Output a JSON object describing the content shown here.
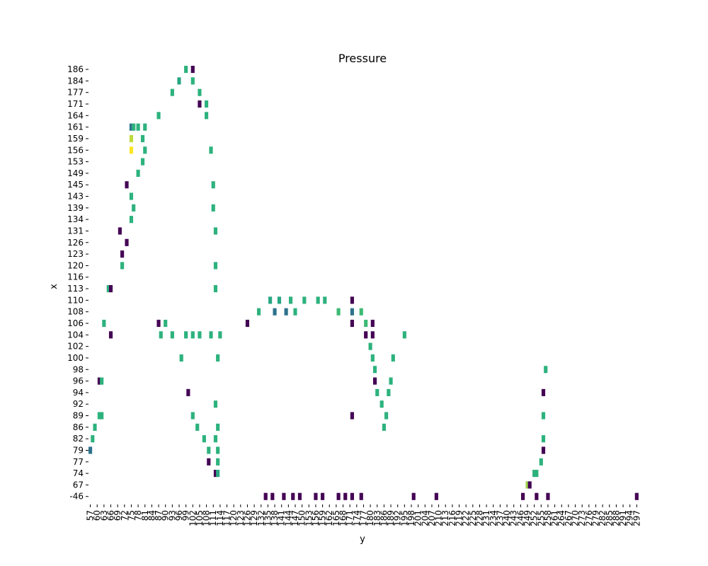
{
  "chart_data": {
    "type": "heatmap",
    "title": "Pressure",
    "xlabel": "y",
    "ylabel": "x",
    "colormap": "viridis",
    "grid": false,
    "colors": {
      "low": "#440154",
      "midlow": "#3b528b",
      "mid": "#21918c",
      "midhigh": "#2db27d",
      "high": "#5ec962",
      "max": "#fde725"
    },
    "x_tick_labels": [
      "57",
      "60",
      "63",
      "66",
      "69",
      "72",
      "75",
      "78",
      "81",
      "84",
      "87",
      "90",
      "93",
      "96",
      "99",
      "102",
      "105",
      "108",
      "111",
      "114",
      "117",
      "120",
      "123",
      "126",
      "129",
      "132",
      "135",
      "138",
      "141",
      "144",
      "147",
      "150",
      "153",
      "156",
      "159",
      "162",
      "165",
      "168",
      "171",
      "174",
      "177",
      "180",
      "183",
      "186",
      "189",
      "192",
      "195",
      "198",
      "201",
      "204",
      "207",
      "210",
      "213",
      "216",
      "219",
      "222",
      "225",
      "228",
      "231",
      "234",
      "237",
      "240",
      "243",
      "246",
      "249",
      "252",
      "255",
      "258",
      "261",
      "264",
      "267",
      "270",
      "273",
      "276",
      "279",
      "282",
      "285",
      "288",
      "291",
      "294",
      "297"
    ],
    "y_tick_labels": [
      "186",
      "184",
      "177",
      "171",
      "164",
      "161",
      "159",
      "156",
      "153",
      "149",
      "145",
      "143",
      "139",
      "134",
      "131",
      "126",
      "123",
      "120",
      "116",
      "113",
      "110",
      "108",
      "106",
      "104",
      "102",
      "100",
      "98",
      "96",
      "94",
      "92",
      "89",
      "86",
      "82",
      "79",
      "77",
      "74",
      "67",
      "-46"
    ],
    "cells": [
      {
        "y": 186,
        "x": 99,
        "v": 0.6
      },
      {
        "y": 186,
        "x": 102,
        "v": 0.0
      },
      {
        "y": 184,
        "x": 96,
        "v": 0.55
      },
      {
        "y": 184,
        "x": 102,
        "v": 0.6
      },
      {
        "y": 177,
        "x": 93,
        "v": 0.6
      },
      {
        "y": 177,
        "x": 105,
        "v": 0.6
      },
      {
        "y": 171,
        "x": 105,
        "v": 0.0
      },
      {
        "y": 171,
        "x": 108,
        "v": 0.6
      },
      {
        "y": 164,
        "x": 87,
        "v": 0.6
      },
      {
        "y": 164,
        "x": 108,
        "v": 0.6
      },
      {
        "y": 161,
        "x": 75,
        "v": 0.35
      },
      {
        "y": 161,
        "x": 76,
        "v": 0.6
      },
      {
        "y": 161,
        "x": 78,
        "v": 0.6
      },
      {
        "y": 161,
        "x": 81,
        "v": 0.6
      },
      {
        "y": 159,
        "x": 75,
        "v": 0.9
      },
      {
        "y": 159,
        "x": 80,
        "v": 0.6
      },
      {
        "y": 156,
        "x": 75,
        "v": 1.0
      },
      {
        "y": 156,
        "x": 81,
        "v": 0.6
      },
      {
        "y": 156,
        "x": 110,
        "v": 0.6
      },
      {
        "y": 153,
        "x": 80,
        "v": 0.6
      },
      {
        "y": 149,
        "x": 78,
        "v": 0.6
      },
      {
        "y": 145,
        "x": 73,
        "v": 0.0
      },
      {
        "y": 145,
        "x": 111,
        "v": 0.6
      },
      {
        "y": 143,
        "x": 75,
        "v": 0.6
      },
      {
        "y": 139,
        "x": 76,
        "v": 0.6
      },
      {
        "y": 139,
        "x": 111,
        "v": 0.6
      },
      {
        "y": 134,
        "x": 75,
        "v": 0.6
      },
      {
        "y": 131,
        "x": 70,
        "v": 0.0
      },
      {
        "y": 131,
        "x": 112,
        "v": 0.6
      },
      {
        "y": 126,
        "x": 73,
        "v": 0.0
      },
      {
        "y": 123,
        "x": 71,
        "v": 0.0
      },
      {
        "y": 120,
        "x": 71,
        "v": 0.6
      },
      {
        "y": 120,
        "x": 112,
        "v": 0.6
      },
      {
        "y": 113,
        "x": 65,
        "v": 0.6
      },
      {
        "y": 113,
        "x": 66,
        "v": 0.0
      },
      {
        "y": 113,
        "x": 112,
        "v": 0.6
      },
      {
        "y": 110,
        "x": 136,
        "v": 0.55
      },
      {
        "y": 110,
        "x": 140,
        "v": 0.55
      },
      {
        "y": 110,
        "x": 145,
        "v": 0.6
      },
      {
        "y": 110,
        "x": 151,
        "v": 0.6
      },
      {
        "y": 110,
        "x": 157,
        "v": 0.6
      },
      {
        "y": 110,
        "x": 160,
        "v": 0.6
      },
      {
        "y": 110,
        "x": 172,
        "v": 0.0
      },
      {
        "y": 108,
        "x": 131,
        "v": 0.6
      },
      {
        "y": 108,
        "x": 138,
        "v": 0.35
      },
      {
        "y": 108,
        "x": 143,
        "v": 0.35
      },
      {
        "y": 108,
        "x": 147,
        "v": 0.6
      },
      {
        "y": 108,
        "x": 166,
        "v": 0.65
      },
      {
        "y": 108,
        "x": 172,
        "v": 0.35
      },
      {
        "y": 108,
        "x": 176,
        "v": 0.65
      },
      {
        "y": 106,
        "x": 63,
        "v": 0.6
      },
      {
        "y": 106,
        "x": 87,
        "v": 0.0
      },
      {
        "y": 106,
        "x": 90,
        "v": 0.6
      },
      {
        "y": 106,
        "x": 126,
        "v": 0.0
      },
      {
        "y": 106,
        "x": 172,
        "v": 0.0
      },
      {
        "y": 106,
        "x": 178,
        "v": 0.65
      },
      {
        "y": 106,
        "x": 181,
        "v": 0.0
      },
      {
        "y": 104,
        "x": 66,
        "v": 0.0
      },
      {
        "y": 104,
        "x": 88,
        "v": 0.6
      },
      {
        "y": 104,
        "x": 93,
        "v": 0.6
      },
      {
        "y": 104,
        "x": 99,
        "v": 0.6
      },
      {
        "y": 104,
        "x": 102,
        "v": 0.6
      },
      {
        "y": 104,
        "x": 105,
        "v": 0.6
      },
      {
        "y": 104,
        "x": 110,
        "v": 0.6
      },
      {
        "y": 104,
        "x": 114,
        "v": 0.6
      },
      {
        "y": 104,
        "x": 178,
        "v": 0.0
      },
      {
        "y": 104,
        "x": 181,
        "v": 0.0
      },
      {
        "y": 104,
        "x": 195,
        "v": 0.6
      },
      {
        "y": 102,
        "x": 180,
        "v": 0.6
      },
      {
        "y": 100,
        "x": 97,
        "v": 0.6
      },
      {
        "y": 100,
        "x": 113,
        "v": 0.6
      },
      {
        "y": 100,
        "x": 181,
        "v": 0.6
      },
      {
        "y": 100,
        "x": 190,
        "v": 0.6
      },
      {
        "y": 98,
        "x": 182,
        "v": 0.6
      },
      {
        "y": 98,
        "x": 257,
        "v": 0.6
      },
      {
        "y": 96,
        "x": 61,
        "v": 0.0
      },
      {
        "y": 96,
        "x": 62,
        "v": 0.6
      },
      {
        "y": 96,
        "x": 182,
        "v": 0.0
      },
      {
        "y": 96,
        "x": 189,
        "v": 0.6
      },
      {
        "y": 94,
        "x": 100,
        "v": 0.0
      },
      {
        "y": 94,
        "x": 183,
        "v": 0.6
      },
      {
        "y": 94,
        "x": 188,
        "v": 0.6
      },
      {
        "y": 94,
        "x": 256,
        "v": 0.0
      },
      {
        "y": 92,
        "x": 112,
        "v": 0.6
      },
      {
        "y": 92,
        "x": 185,
        "v": 0.6
      },
      {
        "y": 89,
        "x": 62,
        "v": 0.6
      },
      {
        "y": 89,
        "x": 61,
        "v": 0.6
      },
      {
        "y": 89,
        "x": 102,
        "v": 0.6
      },
      {
        "y": 89,
        "x": 172,
        "v": 0.0
      },
      {
        "y": 89,
        "x": 187,
        "v": 0.6
      },
      {
        "y": 89,
        "x": 256,
        "v": 0.6
      },
      {
        "y": 86,
        "x": 59,
        "v": 0.6
      },
      {
        "y": 86,
        "x": 104,
        "v": 0.6
      },
      {
        "y": 86,
        "x": 113,
        "v": 0.6
      },
      {
        "y": 86,
        "x": 186,
        "v": 0.6
      },
      {
        "y": 82,
        "x": 58,
        "v": 0.6
      },
      {
        "y": 82,
        "x": 107,
        "v": 0.6
      },
      {
        "y": 82,
        "x": 112,
        "v": 0.6
      },
      {
        "y": 82,
        "x": 256,
        "v": 0.6
      },
      {
        "y": 79,
        "x": 57,
        "v": 0.35
      },
      {
        "y": 79,
        "x": 109,
        "v": 0.6
      },
      {
        "y": 79,
        "x": 113,
        "v": 0.6
      },
      {
        "y": 79,
        "x": 256,
        "v": 0.0
      },
      {
        "y": 77,
        "x": 109,
        "v": 0.0
      },
      {
        "y": 77,
        "x": 113,
        "v": 0.6
      },
      {
        "y": 77,
        "x": 255,
        "v": 0.6
      },
      {
        "y": 74,
        "x": 112,
        "v": 0.0
      },
      {
        "y": 74,
        "x": 113,
        "v": 0.55
      },
      {
        "y": 74,
        "x": 253,
        "v": 0.6
      },
      {
        "y": 74,
        "x": 252,
        "v": 0.6
      },
      {
        "y": 67,
        "x": 249,
        "v": 0.85
      },
      {
        "y": 67,
        "x": 250,
        "v": 0.0
      },
      {
        "y": -46,
        "x": 134,
        "v": 0.0
      },
      {
        "y": -46,
        "x": 137,
        "v": 0.0
      },
      {
        "y": -46,
        "x": 142,
        "v": 0.0
      },
      {
        "y": -46,
        "x": 146,
        "v": 0.0
      },
      {
        "y": -46,
        "x": 149,
        "v": 0.0
      },
      {
        "y": -46,
        "x": 156,
        "v": 0.0
      },
      {
        "y": -46,
        "x": 159,
        "v": 0.0
      },
      {
        "y": -46,
        "x": 166,
        "v": 0.0
      },
      {
        "y": -46,
        "x": 169,
        "v": 0.0
      },
      {
        "y": -46,
        "x": 172,
        "v": 0.0
      },
      {
        "y": -46,
        "x": 176,
        "v": 0.0
      },
      {
        "y": -46,
        "x": 199,
        "v": 0.0
      },
      {
        "y": -46,
        "x": 209,
        "v": 0.0
      },
      {
        "y": -46,
        "x": 247,
        "v": 0.0
      },
      {
        "y": -46,
        "x": 253,
        "v": 0.0
      },
      {
        "y": -46,
        "x": 258,
        "v": 0.0
      },
      {
        "y": -46,
        "x": 297,
        "v": 0.0
      }
    ]
  }
}
